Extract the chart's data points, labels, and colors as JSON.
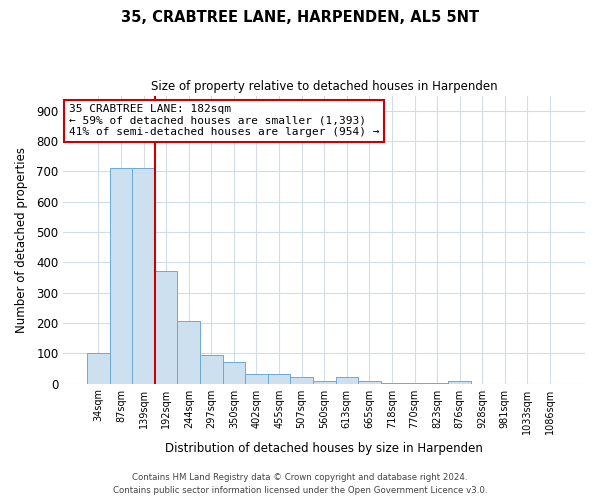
{
  "title": "35, CRABTREE LANE, HARPENDEN, AL5 5NT",
  "subtitle": "Size of property relative to detached houses in Harpenden",
  "xlabel": "Distribution of detached houses by size in Harpenden",
  "ylabel": "Number of detached properties",
  "bar_labels": [
    "34sqm",
    "87sqm",
    "139sqm",
    "192sqm",
    "244sqm",
    "297sqm",
    "350sqm",
    "402sqm",
    "455sqm",
    "507sqm",
    "560sqm",
    "613sqm",
    "665sqm",
    "718sqm",
    "770sqm",
    "823sqm",
    "876sqm",
    "928sqm",
    "981sqm",
    "1033sqm",
    "1086sqm"
  ],
  "bar_values": [
    100,
    710,
    710,
    370,
    205,
    95,
    72,
    30,
    33,
    20,
    10,
    23,
    7,
    3,
    3,
    3,
    10,
    0,
    0,
    0,
    0
  ],
  "bar_color": "#cde0f0",
  "bar_edge_color": "#6aaad4",
  "ylim": [
    0,
    950
  ],
  "yticks": [
    0,
    100,
    200,
    300,
    400,
    500,
    600,
    700,
    800,
    900
  ],
  "vline_x_idx": 2.5,
  "vline_color": "#cc0000",
  "annotation_line1": "35 CRABTREE LANE: 182sqm",
  "annotation_line2": "← 59% of detached houses are smaller (1,393)",
  "annotation_line3": "41% of semi-detached houses are larger (954) →",
  "annotation_box_color": "#ffffff",
  "annotation_box_edgecolor": "#cc0000",
  "footer_line1": "Contains HM Land Registry data © Crown copyright and database right 2024.",
  "footer_line2": "Contains public sector information licensed under the Open Government Licence v3.0.",
  "background_color": "#ffffff",
  "grid_color": "#d0dce8"
}
